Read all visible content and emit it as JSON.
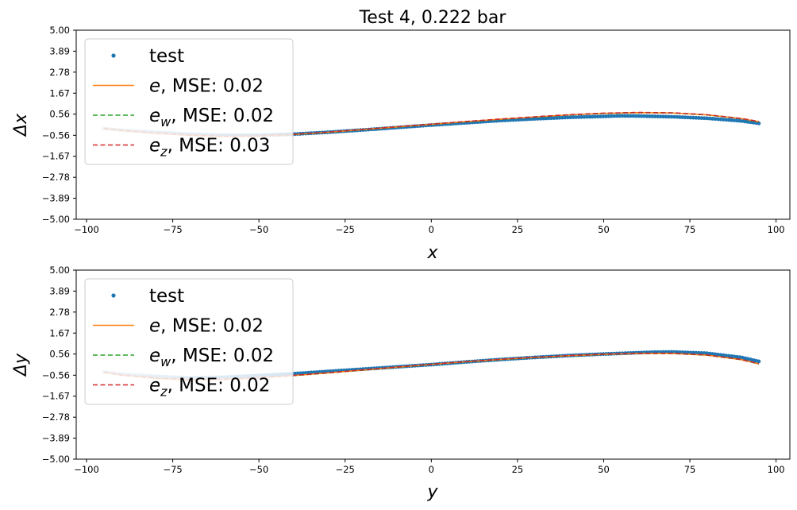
{
  "chart_data": [
    {
      "type": "line",
      "title": "Test 4, 0.222 bar",
      "xlabel": "x",
      "ylabel": "Δx",
      "xlim": [
        -103,
        104
      ],
      "ylim": [
        -5.0,
        5.0
      ],
      "xticks": [
        -100,
        -75,
        -50,
        -25,
        0,
        25,
        50,
        75,
        100
      ],
      "xtick_labels": [
        "−100",
        "−75",
        "−50",
        "−25",
        "0",
        "25",
        "50",
        "75",
        "100"
      ],
      "yticks": [
        -5.0,
        -3.89,
        -2.78,
        -1.67,
        -0.56,
        0.56,
        1.67,
        2.78,
        3.89,
        5.0
      ],
      "ytick_labels": [
        "−5.00",
        "−3.89",
        "−2.78",
        "−1.67",
        "−0.56",
        "0.56",
        "1.67",
        "2.78",
        "3.89",
        "5.00"
      ],
      "legend_position": "top-left",
      "legend": {
        "test": "test",
        "e": {
          "sym": "e",
          "sub": "",
          "text": ", MSE: 0.02"
        },
        "ew": {
          "sym": "e",
          "sub": "w",
          "text": ", MSE: 0.02"
        },
        "ez": {
          "sym": "e",
          "sub": "z",
          "text": ", MSE: 0.03"
        }
      },
      "series": [
        {
          "name": "test",
          "style": "dots",
          "color": "#1f77b4",
          "x": [
            -95,
            -90,
            -80,
            -70,
            -60,
            -50,
            -40,
            -30,
            -20,
            -10,
            0,
            10,
            20,
            30,
            40,
            50,
            55,
            60,
            70,
            80,
            90,
            95
          ],
          "values": [
            -0.2,
            -0.28,
            -0.4,
            -0.5,
            -0.56,
            -0.56,
            -0.5,
            -0.4,
            -0.28,
            -0.15,
            -0.02,
            0.1,
            0.22,
            0.31,
            0.39,
            0.44,
            0.47,
            0.46,
            0.42,
            0.34,
            0.2,
            0.07
          ]
        },
        {
          "name": "e",
          "style": "solid",
          "color": "#ff7f0e",
          "x": [
            -95,
            -90,
            -80,
            -70,
            -60,
            -50,
            -40,
            -30,
            -20,
            -10,
            0,
            10,
            20,
            30,
            40,
            50,
            60,
            70,
            80,
            90,
            95
          ],
          "values": [
            -0.2,
            -0.3,
            -0.45,
            -0.56,
            -0.62,
            -0.6,
            -0.52,
            -0.4,
            -0.26,
            -0.12,
            0.02,
            0.16,
            0.29,
            0.41,
            0.52,
            0.6,
            0.64,
            0.62,
            0.52,
            0.32,
            0.16
          ]
        },
        {
          "name": "ew",
          "style": "dashed",
          "color": "#2ca02c",
          "x": [
            -95,
            -90,
            -80,
            -70,
            -60,
            -50,
            -40,
            -30,
            -20,
            -10,
            0,
            10,
            20,
            30,
            40,
            50,
            60,
            70,
            80,
            90,
            95
          ],
          "values": [
            -0.2,
            -0.3,
            -0.45,
            -0.56,
            -0.62,
            -0.6,
            -0.52,
            -0.4,
            -0.26,
            -0.12,
            0.02,
            0.16,
            0.29,
            0.41,
            0.52,
            0.6,
            0.64,
            0.62,
            0.52,
            0.32,
            0.16
          ]
        },
        {
          "name": "ez",
          "style": "dashed",
          "color": "#d62728",
          "x": [
            -95,
            -90,
            -80,
            -70,
            -60,
            -50,
            -40,
            -30,
            -20,
            -10,
            0,
            10,
            20,
            30,
            40,
            50,
            60,
            70,
            80,
            90,
            95
          ],
          "values": [
            -0.18,
            -0.29,
            -0.44,
            -0.55,
            -0.61,
            -0.59,
            -0.51,
            -0.39,
            -0.25,
            -0.11,
            0.03,
            0.17,
            0.3,
            0.42,
            0.53,
            0.61,
            0.65,
            0.63,
            0.53,
            0.33,
            0.17
          ]
        }
      ]
    },
    {
      "type": "line",
      "title": "",
      "xlabel": "y",
      "ylabel": "Δy",
      "xlim": [
        -103,
        104
      ],
      "ylim": [
        -5.0,
        5.0
      ],
      "xticks": [
        -100,
        -75,
        -50,
        -25,
        0,
        25,
        50,
        75,
        100
      ],
      "xtick_labels": [
        "−100",
        "−75",
        "−50",
        "−25",
        "0",
        "25",
        "50",
        "75",
        "100"
      ],
      "yticks": [
        -5.0,
        -3.89,
        -2.78,
        -1.67,
        -0.56,
        0.56,
        1.67,
        2.78,
        3.89,
        5.0
      ],
      "ytick_labels": [
        "−5.00",
        "−3.89",
        "−2.78",
        "−1.67",
        "−0.56",
        "0.56",
        "1.67",
        "2.78",
        "3.89",
        "5.00"
      ],
      "legend_position": "top-left",
      "legend": {
        "test": "test",
        "e": {
          "sym": "e",
          "sub": "",
          "text": ", MSE: 0.02"
        },
        "ew": {
          "sym": "e",
          "sub": "w",
          "text": ", MSE: 0.02"
        },
        "ez": {
          "sym": "e",
          "sub": "z",
          "text": ", MSE: 0.02"
        }
      },
      "series": [
        {
          "name": "test",
          "style": "dots",
          "color": "#1f77b4",
          "x": [
            -95,
            -90,
            -80,
            -70,
            -60,
            -50,
            -40,
            -30,
            -20,
            -10,
            0,
            10,
            20,
            30,
            40,
            50,
            60,
            65,
            70,
            80,
            90,
            95
          ],
          "values": [
            -0.38,
            -0.5,
            -0.62,
            -0.7,
            -0.66,
            -0.58,
            -0.48,
            -0.36,
            -0.24,
            -0.12,
            0.0,
            0.14,
            0.27,
            0.38,
            0.48,
            0.56,
            0.63,
            0.66,
            0.67,
            0.6,
            0.38,
            0.17
          ]
        },
        {
          "name": "e",
          "style": "solid",
          "color": "#ff7f0e",
          "x": [
            -95,
            -90,
            -80,
            -70,
            -60,
            -50,
            -40,
            -30,
            -20,
            -10,
            0,
            10,
            20,
            30,
            40,
            50,
            60,
            70,
            80,
            90,
            95
          ],
          "values": [
            -0.4,
            -0.55,
            -0.72,
            -0.8,
            -0.78,
            -0.7,
            -0.58,
            -0.44,
            -0.29,
            -0.14,
            0.01,
            0.15,
            0.27,
            0.38,
            0.47,
            0.54,
            0.59,
            0.59,
            0.5,
            0.26,
            0.04
          ]
        },
        {
          "name": "ew",
          "style": "dashed",
          "color": "#2ca02c",
          "x": [
            -95,
            -90,
            -80,
            -70,
            -60,
            -50,
            -40,
            -30,
            -20,
            -10,
            0,
            10,
            20,
            30,
            40,
            50,
            60,
            70,
            80,
            90,
            95
          ],
          "values": [
            -0.4,
            -0.55,
            -0.72,
            -0.8,
            -0.78,
            -0.7,
            -0.58,
            -0.44,
            -0.29,
            -0.14,
            0.01,
            0.15,
            0.27,
            0.38,
            0.47,
            0.54,
            0.59,
            0.59,
            0.5,
            0.26,
            0.04
          ]
        },
        {
          "name": "ez",
          "style": "dashed",
          "color": "#d62728",
          "x": [
            -95,
            -90,
            -80,
            -70,
            -60,
            -50,
            -40,
            -30,
            -20,
            -10,
            0,
            10,
            20,
            30,
            40,
            50,
            60,
            70,
            80,
            90,
            95
          ],
          "values": [
            -0.39,
            -0.54,
            -0.71,
            -0.79,
            -0.77,
            -0.69,
            -0.57,
            -0.43,
            -0.28,
            -0.13,
            0.02,
            0.16,
            0.28,
            0.39,
            0.48,
            0.55,
            0.6,
            0.6,
            0.51,
            0.27,
            0.05
          ]
        }
      ]
    }
  ]
}
